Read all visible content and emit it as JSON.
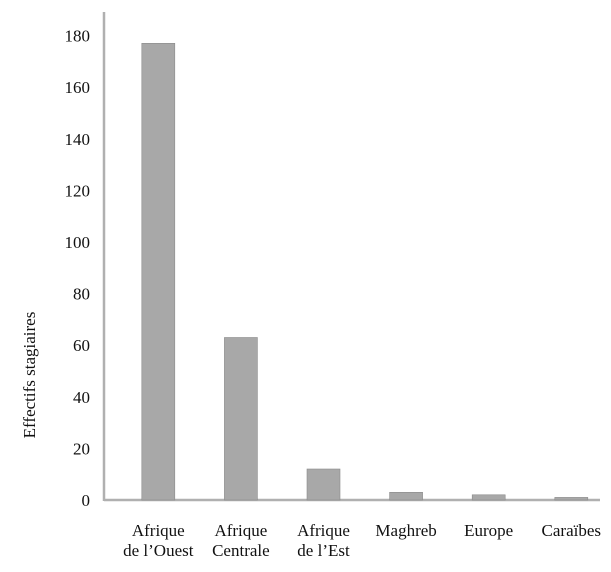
{
  "chart_data": {
    "type": "bar",
    "title": "",
    "xlabel": "",
    "ylabel": "Effectifs stagiaires",
    "ylim": [
      0,
      185
    ],
    "yticks": [
      0,
      20,
      40,
      60,
      80,
      100,
      120,
      140,
      160,
      180
    ],
    "grid": false,
    "legend": "none",
    "categories": [
      [
        "Afrique",
        "de l’Ouest"
      ],
      [
        "Afrique",
        "Centrale"
      ],
      [
        "Afrique",
        "de l’Est"
      ],
      [
        "Maghreb"
      ],
      [
        "Europe"
      ],
      [
        "Caraïbes"
      ]
    ],
    "values": [
      177,
      63,
      12,
      3,
      2,
      1
    ],
    "colors": {
      "bar": "#a8a8a8",
      "bar_edge": "#8a8a8a",
      "axis": "#b0b0b0"
    }
  }
}
